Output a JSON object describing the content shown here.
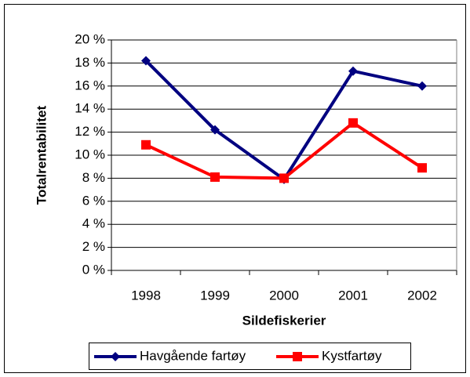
{
  "chart_data": {
    "type": "line",
    "x_label": "Sildefiskerier",
    "y_label": "Totalrentabilitet",
    "categories": [
      "1998",
      "1999",
      "2000",
      "2001",
      "2002"
    ],
    "series": [
      {
        "name": "Havgående fartøy",
        "color": "#000080",
        "marker": "diamond",
        "values": [
          18.2,
          12.2,
          7.9,
          17.3,
          16.0
        ]
      },
      {
        "name": "Kystfartøy",
        "color": "#ff0000",
        "marker": "square",
        "values": [
          10.9,
          8.1,
          8.0,
          12.8,
          8.9
        ]
      }
    ],
    "ylim": [
      0,
      20
    ],
    "yticks": [
      {
        "value": 0,
        "label": "0 %"
      },
      {
        "value": 2,
        "label": "2 %"
      },
      {
        "value": 4,
        "label": "4 %"
      },
      {
        "value": 6,
        "label": "6 %"
      },
      {
        "value": 8,
        "label": "8 %"
      },
      {
        "value": 10,
        "label": "10 %"
      },
      {
        "value": 12,
        "label": "12 %"
      },
      {
        "value": 14,
        "label": "14 %"
      },
      {
        "value": 16,
        "label": "16 %"
      },
      {
        "value": 18,
        "label": "18 %"
      },
      {
        "value": 20,
        "label": "20 %"
      }
    ],
    "grid": true,
    "legend": "bottom"
  }
}
